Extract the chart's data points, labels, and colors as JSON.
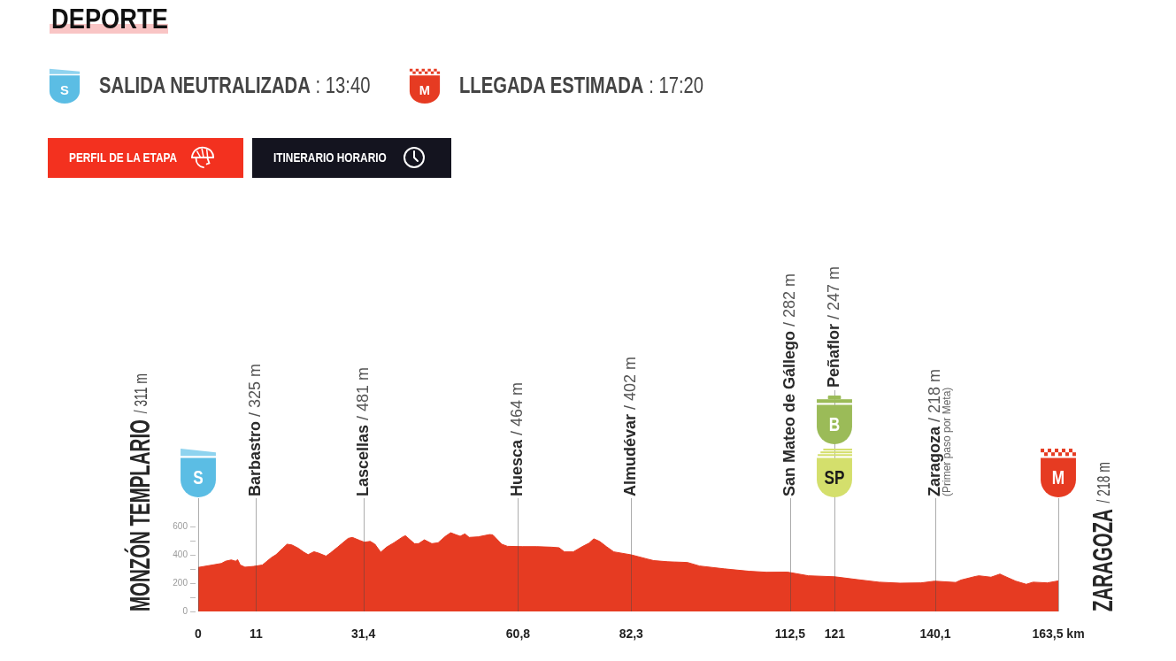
{
  "chart_data": {
    "type": "area",
    "title": "DEPORTE",
    "annotations": [
      "SALIDA NEUTRALIZADA : 13:40",
      "LLEGADA ESTIMADA : 17:20",
      "PERFIL DE LA ETAPA",
      "ITINERARIO HORARIO",
      "S",
      "SP",
      "B",
      "M"
    ],
    "x": [
      0,
      2.7,
      4.4,
      5.2,
      6.3,
      7.1,
      7.5,
      8.0,
      8.9,
      10.5,
      12.2,
      13.9,
      14.8,
      16.1,
      16.9,
      17.8,
      19.0,
      20.1,
      20.9,
      22.0,
      22.9,
      24.3,
      25.1,
      26.5,
      28.5,
      29.3,
      30.7,
      31.6,
      32.7,
      33.6,
      34.7,
      35.8,
      37.2,
      38.9,
      39.4,
      41.1,
      41.9,
      43.0,
      44.4,
      45.6,
      47.0,
      48.0,
      48.9,
      49.8,
      50.7,
      51.5,
      53.2,
      55.4,
      56.0,
      57.7,
      58.8,
      61.6,
      64.4,
      67.2,
      68.6,
      69.6,
      71.3,
      73.0,
      74.3,
      75.2,
      76.3,
      77.6,
      79.0,
      82.3,
      85.3,
      86.6,
      89.3,
      93.0,
      95.3,
      100.0,
      104.7,
      108.0,
      112.0,
      116.0,
      121.0,
      125.3,
      129.4,
      133.4,
      137.4,
      140.0,
      144.0,
      145.0,
      147.7,
      148.4,
      150.7,
      152.4,
      153.4,
      155.4,
      157.4,
      158.7,
      161.4,
      163.5
    ],
    "values": [
      311,
      328,
      339,
      355,
      364,
      355,
      366,
      328,
      313,
      318,
      328,
      380,
      401,
      447,
      475,
      470,
      447,
      418,
      401,
      422,
      412,
      391,
      412,
      454,
      516,
      523,
      502,
      489,
      495,
      475,
      418,
      454,
      485,
      527,
      535,
      479,
      479,
      506,
      479,
      485,
      531,
      556,
      543,
      531,
      548,
      523,
      527,
      543,
      541,
      475,
      460,
      458,
      458,
      454,
      450,
      421,
      421,
      458,
      483,
      513,
      495,
      458,
      421,
      400,
      371,
      359,
      351,
      346,
      321,
      301,
      284,
      277,
      278,
      252,
      245,
      225,
      207,
      200,
      202,
      214,
      205,
      222,
      247,
      252,
      242,
      264,
      247,
      214,
      192,
      207,
      202,
      216
    ],
    "color": "#e63b22",
    "xlim": [
      -0.5,
      164
    ],
    "xticks": [
      0,
      11,
      {
        "value": 31.4,
        "label": "31,4"
      },
      {
        "value": 60.8,
        "label": "60,8"
      },
      {
        "value": 82.3,
        "label": "82,3"
      },
      {
        "value": 112.5,
        "label": "112,5"
      },
      121,
      {
        "value": 140.1,
        "label": "140,1"
      },
      {
        "value": 163.5,
        "label": "163,5 km"
      }
    ],
    "ylim": [
      0,
      800
    ],
    "yticks": [
      0,
      {
        "value": 100,
        "label": null
      },
      200,
      {
        "value": 300,
        "label": null
      },
      400,
      {
        "value": 500,
        "label": null
      },
      600
    ],
    "ref_lines": [
      {
        "axis": "x",
        "value": 0,
        "label": "MONZÓN TEMPLARIO / 311 m"
      },
      {
        "axis": "x",
        "value": 11,
        "label": "Barbastro / 325 m"
      },
      {
        "axis": "x",
        "value": 31.4,
        "label": "Lascellas / 481 m"
      },
      {
        "axis": "x",
        "value": 60.8,
        "label": "Huesca / 464 m"
      },
      {
        "axis": "x",
        "value": 82.3,
        "label": "Almudévar / 402 m"
      },
      {
        "axis": "x",
        "value": 112.5,
        "label": "San Mateo de Gállego / 282 m"
      },
      {
        "axis": "x",
        "value": 121,
        "label": "Peñaflor / 247 m"
      },
      {
        "axis": "x",
        "value": 140.1,
        "label": "Zaragoza / 218 m\n(Primer paso por Meta)"
      },
      {
        "axis": "x",
        "value": 163.5,
        "label": "ZARAGOZA / 218 m"
      }
    ]
  }
}
